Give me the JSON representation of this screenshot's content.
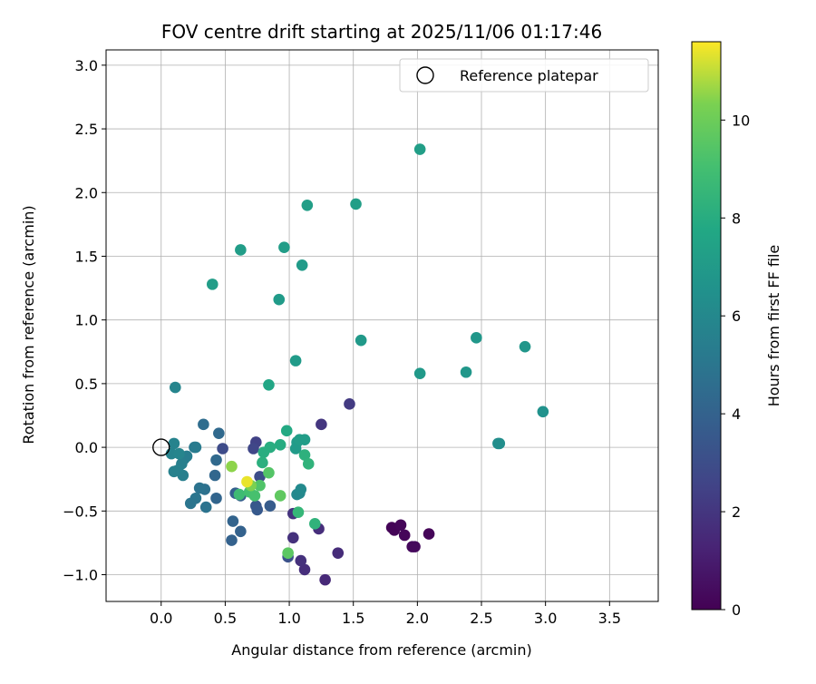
{
  "chart_data": {
    "type": "scatter",
    "title": "FOV centre drift starting at 2025/11/06 01:17:46",
    "xlabel": "Angular distance from reference (arcmin)",
    "ylabel": "Rotation from reference (arcmin)",
    "xlim": [
      -0.43,
      3.88
    ],
    "ylim": [
      -1.21,
      3.12
    ],
    "xticks": [
      0.0,
      0.5,
      1.0,
      1.5,
      2.0,
      2.5,
      3.0,
      3.5
    ],
    "xtick_labels": [
      "0.0",
      "0.5",
      "1.0",
      "1.5",
      "2.0",
      "2.5",
      "3.0",
      "3.5"
    ],
    "yticks": [
      -1.0,
      -0.5,
      0.0,
      0.5,
      1.0,
      1.5,
      2.0,
      2.5,
      3.0
    ],
    "ytick_labels": [
      "−1.0",
      "−0.5",
      "0.0",
      "0.5",
      "1.0",
      "1.5",
      "2.0",
      "2.5",
      "3.0"
    ],
    "grid": true,
    "legend": {
      "position": "top-right",
      "entries": [
        "Reference platepar"
      ]
    },
    "reference_point": {
      "x": 0.0,
      "y": 0.0
    },
    "colorbar": {
      "label": "Hours from first FF file",
      "colormap": "viridis",
      "range": [
        0,
        11.6
      ],
      "ticks": [
        0,
        2,
        4,
        6,
        8,
        10
      ],
      "tick_labels": [
        "0",
        "2",
        "4",
        "6",
        "8",
        "10"
      ]
    },
    "points": [
      {
        "x": 1.8,
        "y": -0.63,
        "h": 0.1
      },
      {
        "x": 1.82,
        "y": -0.65,
        "h": 0.1
      },
      {
        "x": 1.87,
        "y": -0.61,
        "h": 0.2
      },
      {
        "x": 1.9,
        "y": -0.69,
        "h": 0.2
      },
      {
        "x": 1.96,
        "y": -0.78,
        "h": 0.3
      },
      {
        "x": 1.98,
        "y": -0.78,
        "h": 0.3
      },
      {
        "x": 2.09,
        "y": -0.68,
        "h": 0.2
      },
      {
        "x": 1.28,
        "y": -1.04,
        "h": 1.5
      },
      {
        "x": 1.38,
        "y": -0.83,
        "h": 1.6
      },
      {
        "x": 1.12,
        "y": -0.96,
        "h": 1.7
      },
      {
        "x": 1.09,
        "y": -0.89,
        "h": 1.8
      },
      {
        "x": 1.03,
        "y": -0.71,
        "h": 1.8
      },
      {
        "x": 1.03,
        "y": -0.52,
        "h": 1.9
      },
      {
        "x": 1.23,
        "y": -0.64,
        "h": 1.7
      },
      {
        "x": 1.25,
        "y": 0.18,
        "h": 2.0
      },
      {
        "x": 1.47,
        "y": 0.34,
        "h": 2.2
      },
      {
        "x": 0.74,
        "y": 0.04,
        "h": 2.5
      },
      {
        "x": 0.72,
        "y": -0.01,
        "h": 2.7
      },
      {
        "x": 0.48,
        "y": -0.01,
        "h": 2.9
      },
      {
        "x": 0.77,
        "y": -0.23,
        "h": 3.0
      },
      {
        "x": 0.99,
        "y": -0.86,
        "h": 3.2
      },
      {
        "x": 0.74,
        "y": -0.46,
        "h": 3.5
      },
      {
        "x": 0.75,
        "y": -0.49,
        "h": 3.6
      },
      {
        "x": 0.85,
        "y": -0.46,
        "h": 3.7
      },
      {
        "x": 0.62,
        "y": -0.38,
        "h": 3.8
      },
      {
        "x": 0.58,
        "y": -0.36,
        "h": 3.9
      },
      {
        "x": 0.62,
        "y": -0.66,
        "h": 4.0
      },
      {
        "x": 0.55,
        "y": -0.73,
        "h": 4.0
      },
      {
        "x": 0.56,
        "y": -0.58,
        "h": 4.1
      },
      {
        "x": 0.43,
        "y": -0.4,
        "h": 4.2
      },
      {
        "x": 0.42,
        "y": -0.22,
        "h": 4.3
      },
      {
        "x": 0.43,
        "y": -0.1,
        "h": 4.4
      },
      {
        "x": 0.45,
        "y": 0.11,
        "h": 4.4
      },
      {
        "x": 0.33,
        "y": 0.18,
        "h": 4.6
      },
      {
        "x": 0.34,
        "y": -0.33,
        "h": 4.8
      },
      {
        "x": 0.35,
        "y": -0.47,
        "h": 4.9
      },
      {
        "x": 0.3,
        "y": -0.32,
        "h": 4.9
      },
      {
        "x": 0.27,
        "y": -0.4,
        "h": 5.0
      },
      {
        "x": 0.23,
        "y": -0.44,
        "h": 5.0
      },
      {
        "x": 0.26,
        "y": 0.0,
        "h": 5.2
      },
      {
        "x": 0.27,
        "y": 0.0,
        "h": 5.3
      },
      {
        "x": 0.2,
        "y": -0.07,
        "h": 5.4
      },
      {
        "x": 0.18,
        "y": -0.09,
        "h": 5.4
      },
      {
        "x": 0.16,
        "y": -0.13,
        "h": 5.5
      },
      {
        "x": 0.17,
        "y": -0.22,
        "h": 5.5
      },
      {
        "x": 0.13,
        "y": -0.18,
        "h": 5.6
      },
      {
        "x": 0.1,
        "y": -0.19,
        "h": 5.6
      },
      {
        "x": 0.1,
        "y": 0.03,
        "h": 5.7
      },
      {
        "x": 0.08,
        "y": -0.05,
        "h": 5.7
      },
      {
        "x": 0.14,
        "y": -0.05,
        "h": 5.8
      },
      {
        "x": 0.11,
        "y": 0.47,
        "h": 5.8
      },
      {
        "x": 1.06,
        "y": -0.37,
        "h": 6.0
      },
      {
        "x": 1.08,
        "y": -0.36,
        "h": 6.0
      },
      {
        "x": 1.09,
        "y": -0.33,
        "h": 6.1
      },
      {
        "x": 2.64,
        "y": 0.03,
        "h": 6.3
      },
      {
        "x": 2.63,
        "y": 0.03,
        "h": 6.3
      },
      {
        "x": 2.98,
        "y": 0.28,
        "h": 6.5
      },
      {
        "x": 2.84,
        "y": 0.79,
        "h": 6.7
      },
      {
        "x": 2.46,
        "y": 0.86,
        "h": 6.8
      },
      {
        "x": 2.38,
        "y": 0.59,
        "h": 6.8
      },
      {
        "x": 2.02,
        "y": 0.58,
        "h": 6.9
      },
      {
        "x": 1.56,
        "y": 0.84,
        "h": 6.9
      },
      {
        "x": 1.05,
        "y": 0.68,
        "h": 7.0
      },
      {
        "x": 1.06,
        "y": 0.04,
        "h": 7.0
      },
      {
        "x": 1.05,
        "y": -0.01,
        "h": 7.0
      },
      {
        "x": 1.08,
        "y": 0.06,
        "h": 7.1
      },
      {
        "x": 1.12,
        "y": 0.06,
        "h": 7.1
      },
      {
        "x": 0.92,
        "y": 1.16,
        "h": 7.0
      },
      {
        "x": 1.1,
        "y": 1.43,
        "h": 7.0
      },
      {
        "x": 0.96,
        "y": 1.57,
        "h": 7.1
      },
      {
        "x": 0.62,
        "y": 1.55,
        "h": 7.1
      },
      {
        "x": 0.4,
        "y": 1.28,
        "h": 7.1
      },
      {
        "x": 1.14,
        "y": 1.9,
        "h": 7.2
      },
      {
        "x": 1.52,
        "y": 1.91,
        "h": 7.2
      },
      {
        "x": 2.02,
        "y": 2.34,
        "h": 7.2
      },
      {
        "x": 0.84,
        "y": 0.49,
        "h": 7.6
      },
      {
        "x": 0.98,
        "y": 0.13,
        "h": 7.8
      },
      {
        "x": 0.93,
        "y": 0.02,
        "h": 7.9
      },
      {
        "x": 0.85,
        "y": 0.0,
        "h": 8.0
      },
      {
        "x": 0.8,
        "y": -0.04,
        "h": 8.0
      },
      {
        "x": 0.79,
        "y": -0.12,
        "h": 8.1
      },
      {
        "x": 1.12,
        "y": -0.06,
        "h": 8.2
      },
      {
        "x": 1.15,
        "y": -0.13,
        "h": 8.3
      },
      {
        "x": 1.2,
        "y": -0.6,
        "h": 8.3
      },
      {
        "x": 1.07,
        "y": -0.51,
        "h": 8.5
      },
      {
        "x": 0.61,
        "y": -0.37,
        "h": 8.8
      },
      {
        "x": 0.69,
        "y": -0.35,
        "h": 9.0
      },
      {
        "x": 0.73,
        "y": -0.38,
        "h": 9.1
      },
      {
        "x": 0.77,
        "y": -0.3,
        "h": 9.3
      },
      {
        "x": 0.84,
        "y": -0.2,
        "h": 9.4
      },
      {
        "x": 0.99,
        "y": -0.83,
        "h": 9.6
      },
      {
        "x": 0.93,
        "y": -0.38,
        "h": 9.7
      },
      {
        "x": 0.7,
        "y": -0.3,
        "h": 10.3
      },
      {
        "x": 0.55,
        "y": -0.15,
        "h": 10.5
      },
      {
        "x": 0.67,
        "y": -0.27,
        "h": 11.4
      }
    ]
  }
}
